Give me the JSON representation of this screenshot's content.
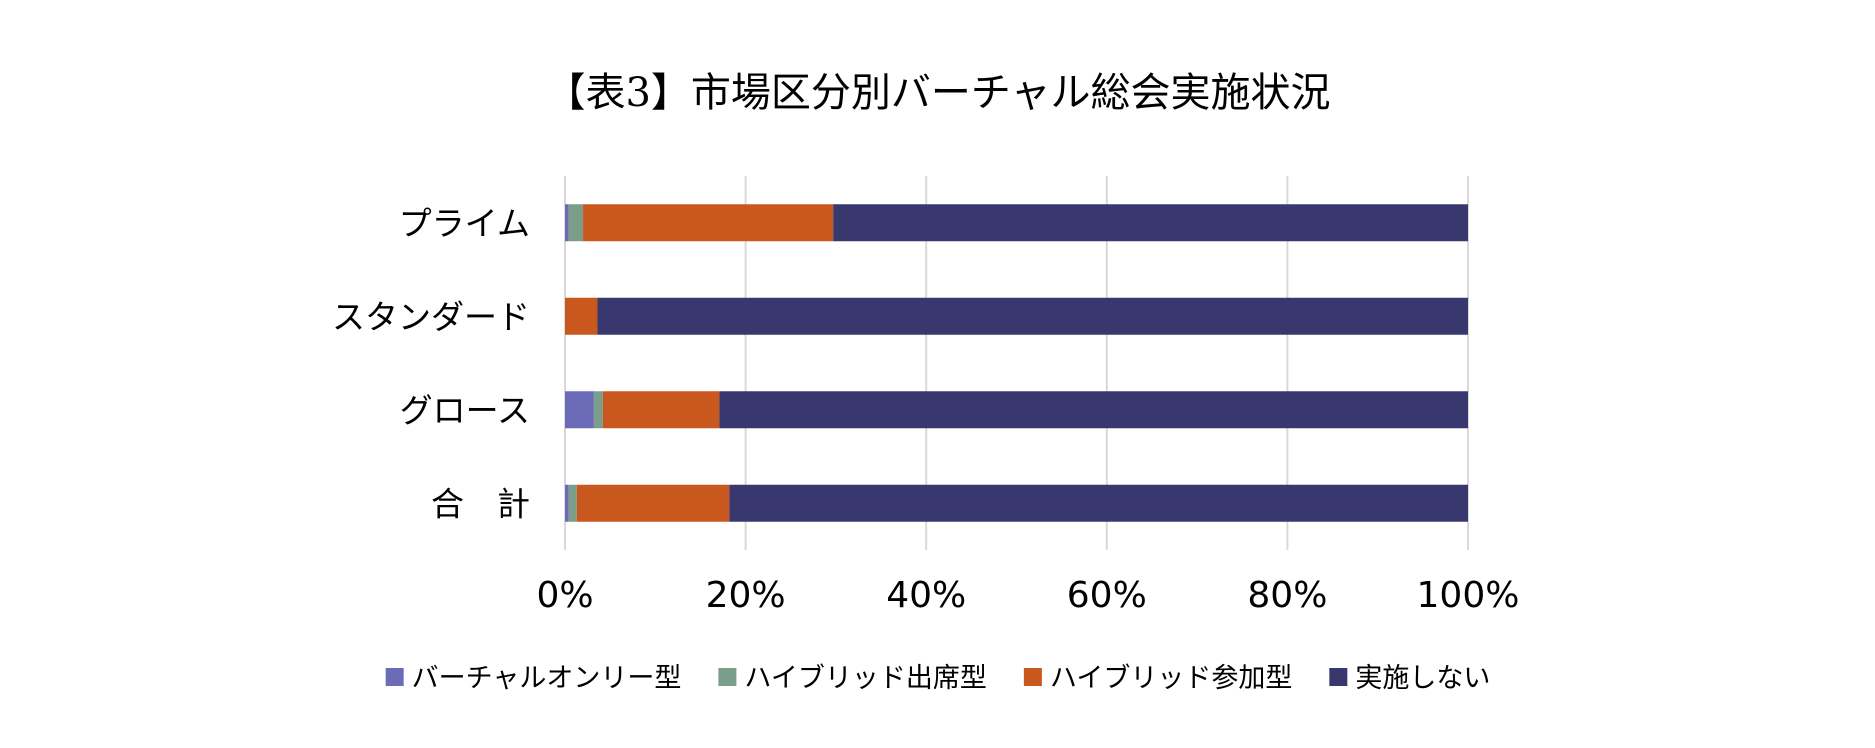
{
  "chart_data": {
    "type": "bar",
    "orientation": "horizontal",
    "stacked": "percent",
    "title": "【表3】市場区分別バーチャル総会実施状況",
    "categories": [
      "プライム",
      "スタンダード",
      "グロース",
      "合　計"
    ],
    "series": [
      {
        "name": "バーチャルオンリー型",
        "color": "#6B6BB8",
        "values": [
          0.4,
          0.0,
          3.2,
          0.4
        ]
      },
      {
        "name": "ハイブリッド出席型",
        "color": "#7A9E8A",
        "values": [
          1.6,
          0.0,
          1.0,
          0.9
        ]
      },
      {
        "name": "ハイブリッド参加型",
        "color": "#C8581E",
        "values": [
          27.7,
          3.6,
          12.9,
          16.9
        ]
      },
      {
        "name": "実施しない",
        "color": "#38386E",
        "values": [
          70.3,
          96.4,
          82.9,
          81.8
        ]
      }
    ],
    "xlim": [
      0,
      100
    ],
    "xticks": [
      "0%",
      "20%",
      "40%",
      "60%",
      "80%",
      "100%"
    ],
    "grid": true,
    "legend": "bottom",
    "xlabel": "",
    "ylabel": ""
  }
}
